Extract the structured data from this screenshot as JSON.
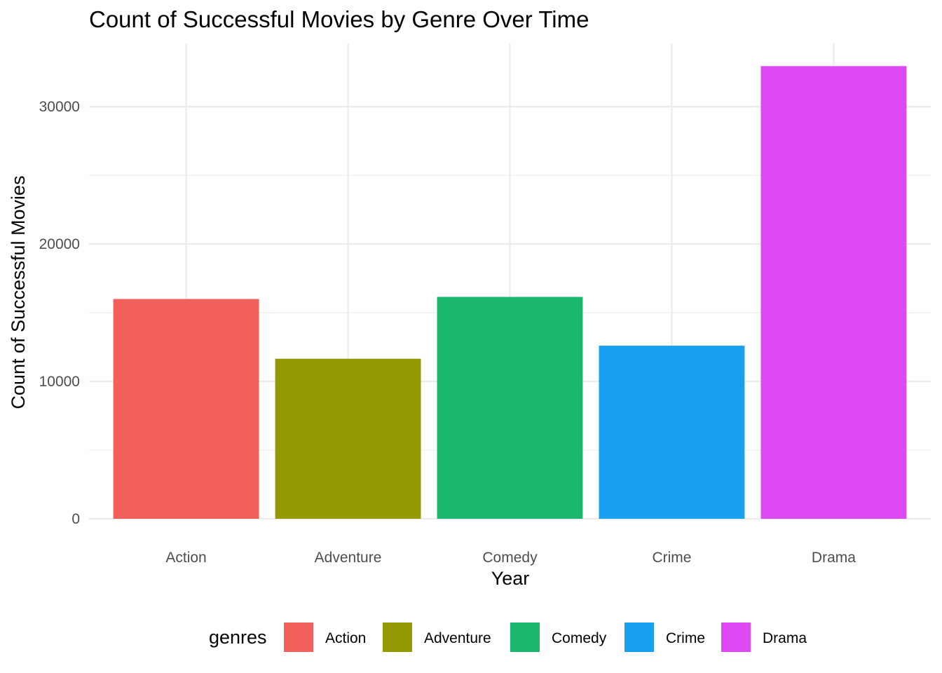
{
  "chart_data": {
    "type": "bar",
    "title": "Count of Successful Movies by Genre Over Time",
    "xlabel": "Year",
    "ylabel": "Count of Successful Movies",
    "categories": [
      "Action",
      "Adventure",
      "Comedy",
      "Crime",
      "Drama"
    ],
    "values": [
      16000,
      11650,
      16150,
      12600,
      32950
    ],
    "colors": [
      "#F2605B",
      "#949A02",
      "#1AB76C",
      "#17A1F0",
      "#DD49F2"
    ],
    "ylim": [
      0,
      34600
    ],
    "yticks": [
      0,
      10000,
      20000,
      30000
    ],
    "ytick_labels": [
      "0",
      "10000",
      "20000",
      "30000"
    ],
    "grid": true,
    "legend": {
      "title": "genres",
      "position": "bottom",
      "entries": [
        "Action",
        "Adventure",
        "Comedy",
        "Crime",
        "Drama"
      ]
    }
  }
}
